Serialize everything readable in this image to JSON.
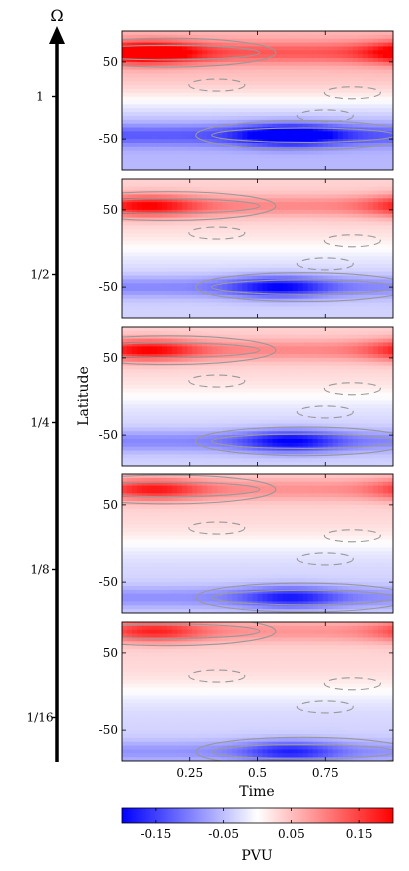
{
  "chart_data": {
    "type": "heatmap",
    "layout": "5 vertically stacked panels sharing x axis",
    "xlabel": "Time",
    "ylabel": "Latitude",
    "x_ticks": [
      "0.25",
      "0.5",
      "0.75"
    ],
    "x_tick_values": [
      0.25,
      0.5,
      0.75
    ],
    "xlim": [
      0,
      1
    ],
    "y_ticks": [
      "50",
      "-50"
    ],
    "y_tick_values": [
      50,
      -50
    ],
    "ylim": [
      -90,
      90
    ],
    "omega_axis": {
      "label": "Ω",
      "tick_labels": [
        "1",
        "1/2",
        "1/4",
        "1/8",
        "1/16"
      ]
    },
    "panels": [
      {
        "omega": "1",
        "nh_peak_lat": 62,
        "nh_peak_time": 0.1,
        "sh_peak_lat": -45,
        "sh_peak_time": 0.62,
        "amp": 0.22
      },
      {
        "omega": "1/2",
        "nh_peak_lat": 55,
        "nh_peak_time": 0.1,
        "sh_peak_lat": -50,
        "sh_peak_time": 0.58,
        "amp": 0.17
      },
      {
        "omega": "1/4",
        "nh_peak_lat": 60,
        "nh_peak_time": 0.1,
        "sh_peak_lat": -58,
        "sh_peak_time": 0.62,
        "amp": 0.17
      },
      {
        "omega": "1/8",
        "nh_peak_lat": 70,
        "nh_peak_time": 0.12,
        "sh_peak_lat": -70,
        "sh_peak_time": 0.62,
        "amp": 0.15
      },
      {
        "omega": "1/16",
        "nh_peak_lat": 78,
        "nh_peak_time": 0.12,
        "sh_peak_lat": -78,
        "sh_peak_time": 0.62,
        "amp": 0.14
      }
    ],
    "colorbar": {
      "label": "PVU",
      "range": [
        -0.2,
        0.2
      ],
      "tick_labels": [
        "-0.15",
        "-0.05",
        "0.05",
        "0.15"
      ],
      "tick_values": [
        -0.15,
        -0.05,
        0.05,
        0.15
      ],
      "colormap": [
        "#0000ff",
        "#ffffff",
        "#ff0000"
      ]
    },
    "contour_color": "#999999",
    "grid": false
  }
}
